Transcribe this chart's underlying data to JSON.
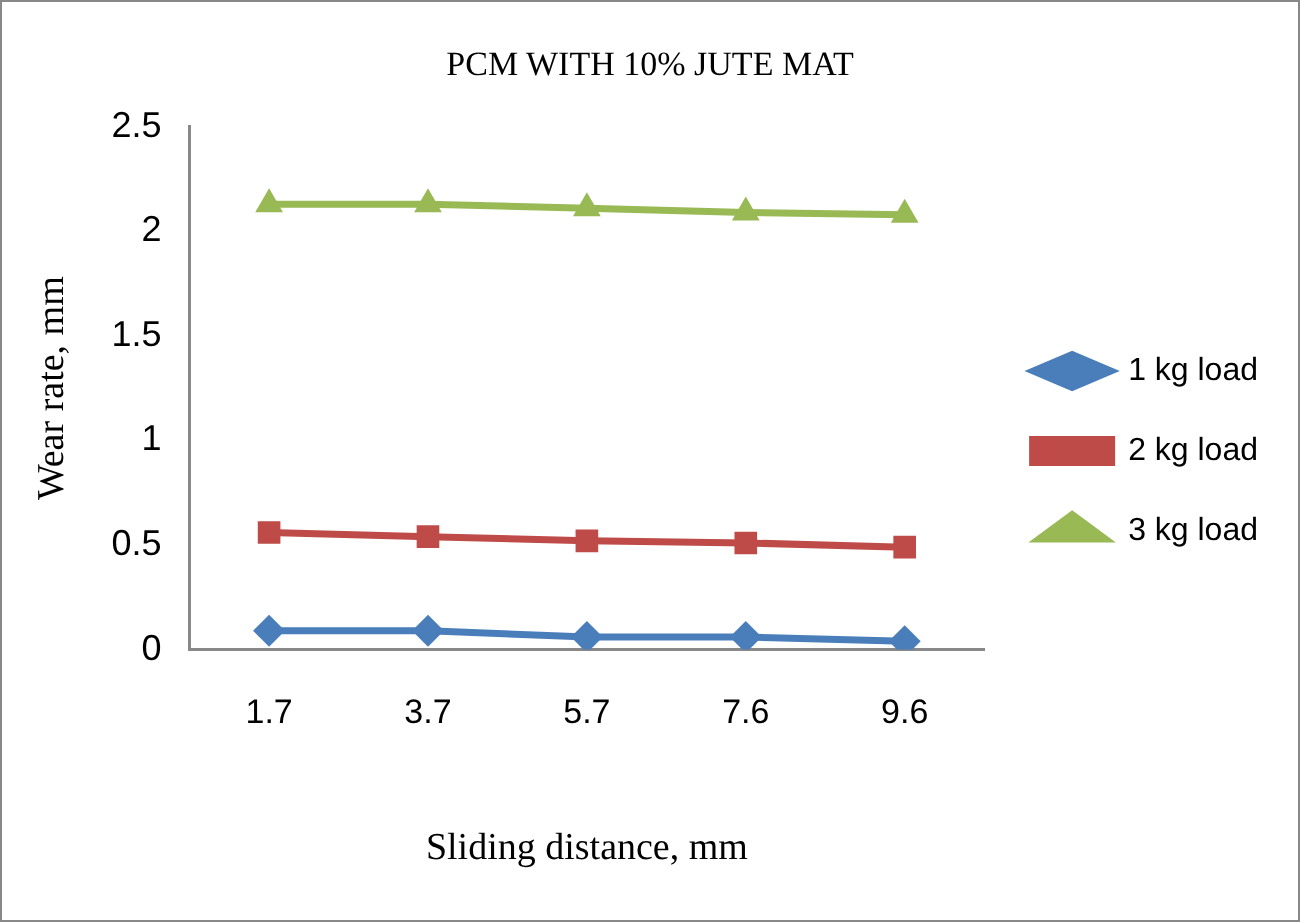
{
  "chart_data": {
    "type": "line",
    "title": "PCM WITH 10% JUTE MAT",
    "xlabel": "Sliding distance, mm",
    "ylabel": "Wear rate, mm",
    "categories": [
      "1.7",
      "3.7",
      "5.7",
      "7.6",
      "9.6"
    ],
    "series": [
      {
        "name": "1 kg load",
        "color": "#4a7ebb",
        "marker": "diamond",
        "values": [
          0.09,
          0.09,
          0.06,
          0.06,
          0.04
        ]
      },
      {
        "name": "2 kg load",
        "color": "#be4b48",
        "marker": "square",
        "values": [
          0.56,
          0.54,
          0.52,
          0.51,
          0.49
        ]
      },
      {
        "name": "3 kg load",
        "color": "#98b954",
        "marker": "triangle",
        "values": [
          2.13,
          2.13,
          2.11,
          2.09,
          2.08
        ]
      }
    ],
    "ylim": [
      0,
      2.5
    ],
    "yticks": [
      0,
      0.5,
      1,
      1.5,
      2,
      2.5
    ],
    "grid": false,
    "legend": "right"
  }
}
